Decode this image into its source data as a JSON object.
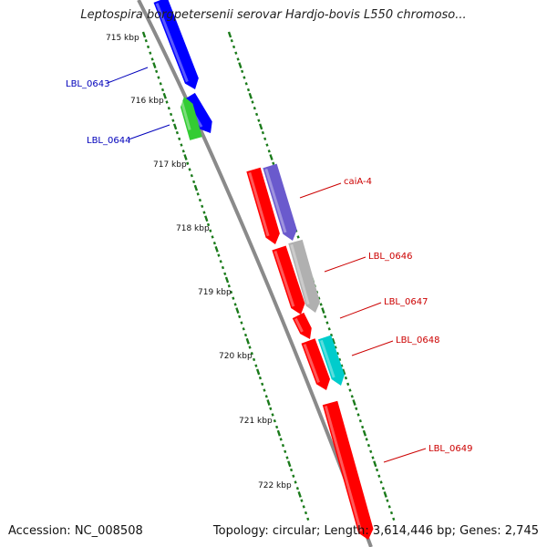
{
  "title": "Leptospira borgpetersenii serovar Hardjo-bovis L550 chromoso...",
  "footer": {
    "accession": "Accession: NC_008508",
    "summary": "Topology: circular; Length: 3,614,446 bp; Genes: 2,745"
  },
  "colors": {
    "backbone": "#8a8a8a",
    "tick": "#1a7a1a",
    "forward_label": "#0000bb",
    "reverse_label": "#cc0000",
    "blue": "#0000ff",
    "green": "#33cc33",
    "red": "#ff0000",
    "purple": "#6a5acd",
    "gray": "#b0b0b0",
    "cyan": "#00cccc"
  },
  "scale_labels": [
    "715 kbp",
    "716 kbp",
    "717 kbp",
    "718 kbp",
    "719 kbp",
    "720 kbp",
    "721 kbp",
    "722 kbp"
  ],
  "features": [
    {
      "name": "feature-blue-a",
      "color": "blue",
      "label": ""
    },
    {
      "name": "feature-blue-b",
      "color": "blue",
      "label": "LBL_0643"
    },
    {
      "name": "feature-green",
      "color": "green",
      "label": "LBL_0644"
    },
    {
      "name": "feature-purple",
      "color": "purple",
      "label": "caiA-4"
    },
    {
      "name": "feature-red-1",
      "color": "red",
      "label": ""
    },
    {
      "name": "feature-gray",
      "color": "gray",
      "label": "LBL_0646"
    },
    {
      "name": "feature-red-2",
      "color": "red",
      "label": "LBL_0647"
    },
    {
      "name": "feature-red-3",
      "color": "red",
      "label": ""
    },
    {
      "name": "feature-cyan",
      "color": "cyan",
      "label": "LBL_0648"
    },
    {
      "name": "feature-red-4",
      "color": "red",
      "label": "LBL_0649"
    }
  ]
}
